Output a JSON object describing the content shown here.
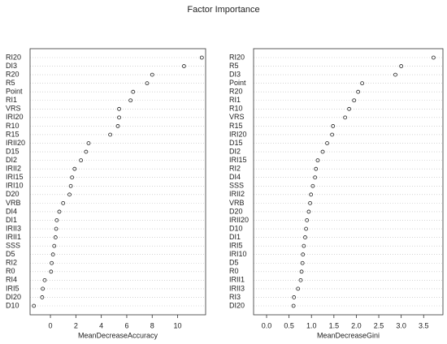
{
  "title": "Factor Importance",
  "chart_data": [
    {
      "type": "dot",
      "x_label": "MeanDecreaseAccuracy",
      "categories": [
        "RI20",
        "DI3",
        "R20",
        "R5",
        "Point",
        "RI1",
        "VRS",
        "IRI20",
        "R10",
        "R15",
        "IRII20",
        "D15",
        "DI2",
        "IRII2",
        "IRI15",
        "IRI10",
        "D20",
        "VRB",
        "DI4",
        "DI1",
        "IRII3",
        "IRII1",
        "SSS",
        "D5",
        "RI2",
        "R0",
        "RI4",
        "IRI5",
        "DI20",
        "D10"
      ],
      "values": [
        11.9,
        10.5,
        8.0,
        7.6,
        6.5,
        6.3,
        5.4,
        5.4,
        5.3,
        4.7,
        3.0,
        2.8,
        2.4,
        1.9,
        1.7,
        1.6,
        1.5,
        1.0,
        0.7,
        0.5,
        0.45,
        0.4,
        0.3,
        0.2,
        0.1,
        0.05,
        -0.45,
        -0.6,
        -0.65,
        -1.3
      ],
      "xlim": [
        -1.6,
        12.2
      ],
      "xticks": [
        0,
        2,
        4,
        6,
        8,
        10
      ]
    },
    {
      "type": "dot",
      "x_label": "MeanDecreaseGini",
      "categories": [
        "RI20",
        "R5",
        "DI3",
        "Point",
        "R20",
        "RI1",
        "R10",
        "VRS",
        "R15",
        "IRI20",
        "D15",
        "DI2",
        "IRI15",
        "RI2",
        "DI4",
        "SSS",
        "IRII2",
        "VRB",
        "D20",
        "IRII20",
        "D10",
        "DI1",
        "IRI5",
        "IRI10",
        "D5",
        "R0",
        "IRII1",
        "IRII3",
        "RI3",
        "DI20"
      ],
      "values": [
        3.72,
        3.0,
        2.87,
        2.13,
        2.04,
        1.95,
        1.84,
        1.75,
        1.48,
        1.46,
        1.35,
        1.25,
        1.14,
        1.1,
        1.08,
        1.03,
        0.99,
        0.97,
        0.94,
        0.9,
        0.88,
        0.86,
        0.83,
        0.81,
        0.8,
        0.78,
        0.76,
        0.7,
        0.61,
        0.6
      ],
      "xlim": [
        -0.29,
        3.93
      ],
      "xticks": [
        {
          "value": 0,
          "label": "0.0"
        },
        0.5,
        {
          "value": 1,
          "label": "1.0"
        },
        1.5,
        {
          "value": 2,
          "label": "2.0"
        },
        2.5,
        {
          "value": 3,
          "label": "3.0"
        },
        3.5
      ]
    }
  ]
}
